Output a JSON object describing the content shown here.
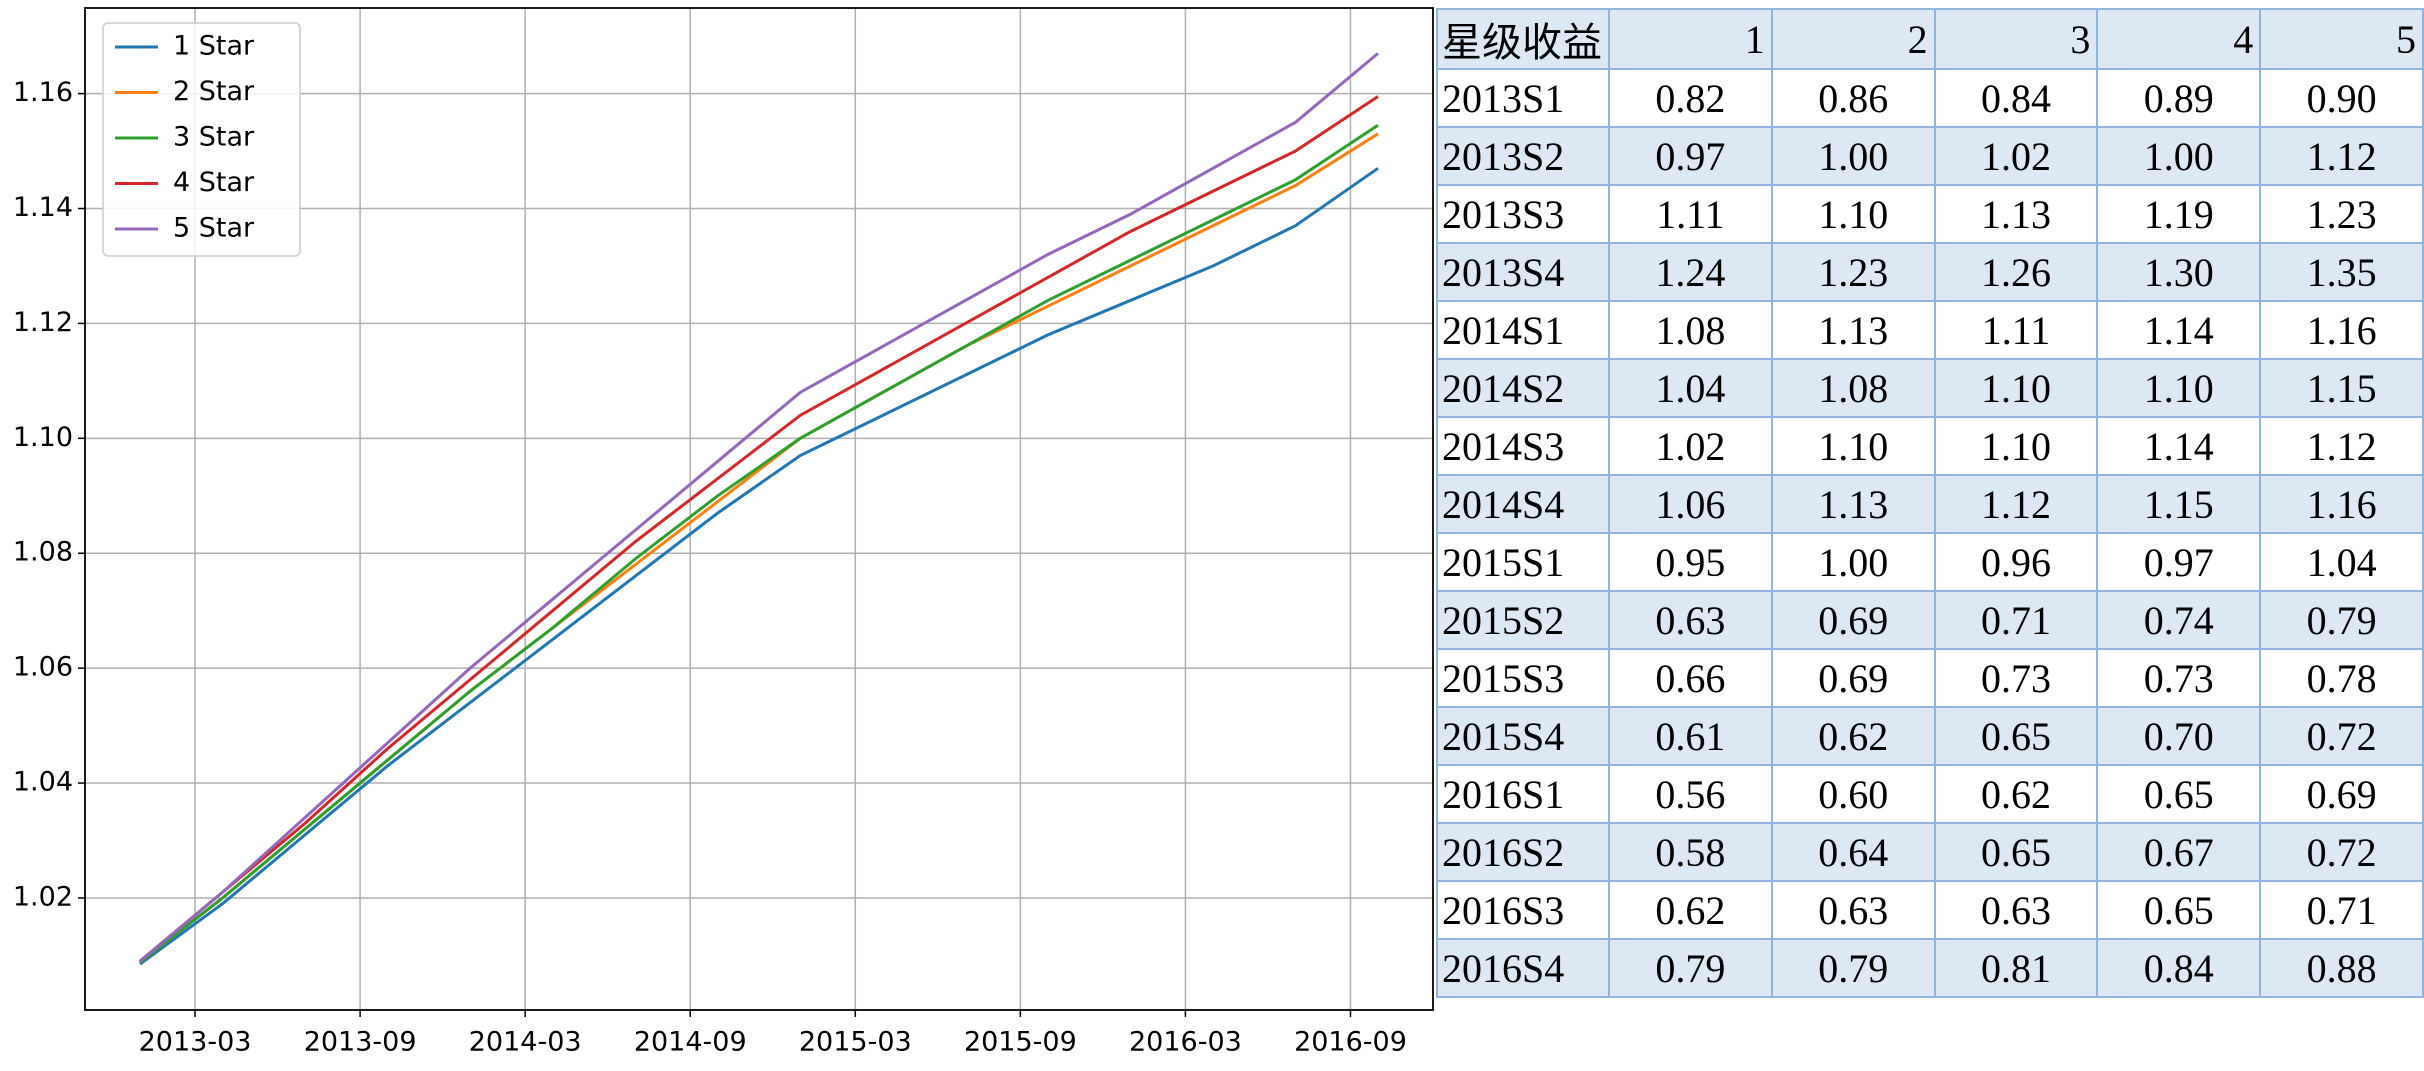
{
  "chart_data": {
    "type": "line",
    "x": [
      "2013-01",
      "2013-04",
      "2013-07",
      "2013-10",
      "2014-01",
      "2014-04",
      "2014-07",
      "2014-10",
      "2015-01",
      "2015-04",
      "2015-07",
      "2015-10",
      "2016-01",
      "2016-04",
      "2016-07",
      "2016-10"
    ],
    "series": [
      {
        "name": "1 Star",
        "color": "#1f77b4",
        "values": [
          1.0085,
          1.019,
          1.031,
          1.043,
          1.054,
          1.065,
          1.076,
          1.087,
          1.097,
          1.104,
          1.111,
          1.118,
          1.124,
          1.13,
          1.137,
          1.147
        ]
      },
      {
        "name": "2 Star",
        "color": "#ff7f0e",
        "values": [
          1.0088,
          1.02,
          1.032,
          1.044,
          1.056,
          1.067,
          1.078,
          1.089,
          1.1,
          1.108,
          1.116,
          1.123,
          1.13,
          1.137,
          1.144,
          1.153
        ]
      },
      {
        "name": "3 Star",
        "color": "#2ca02c",
        "values": [
          1.0088,
          1.02,
          1.032,
          1.044,
          1.056,
          1.067,
          1.079,
          1.09,
          1.1,
          1.108,
          1.116,
          1.124,
          1.131,
          1.138,
          1.145,
          1.1545
        ]
      },
      {
        "name": "4 Star",
        "color": "#d62728",
        "values": [
          1.009,
          1.021,
          1.033,
          1.046,
          1.058,
          1.07,
          1.082,
          1.093,
          1.104,
          1.112,
          1.12,
          1.128,
          1.136,
          1.143,
          1.15,
          1.1595
        ]
      },
      {
        "name": "5 Star",
        "color": "#9467bd",
        "values": [
          1.009,
          1.021,
          1.034,
          1.047,
          1.06,
          1.072,
          1.084,
          1.096,
          1.108,
          1.116,
          1.124,
          1.132,
          1.139,
          1.147,
          1.155,
          1.167
        ]
      }
    ],
    "xlim": [
      "2012-11",
      "2016-12"
    ],
    "xticks": [
      "2013-03",
      "2013-09",
      "2014-03",
      "2014-09",
      "2015-03",
      "2015-09",
      "2016-03",
      "2016-09"
    ],
    "ylim": [
      1.0005,
      1.1749
    ],
    "yticks": [
      1.02,
      1.04,
      1.06,
      1.08,
      {
        "value": 1.1,
        "label": "1.10"
      },
      1.12,
      1.14,
      1.16
    ],
    "grid": true,
    "legend": "upper left"
  },
  "table": {
    "header": [
      "星级收益",
      "1",
      "2",
      "3",
      "4",
      "5"
    ],
    "rows": [
      [
        "2013S1",
        "0.82",
        "0.86",
        "0.84",
        "0.89",
        "0.90"
      ],
      [
        "2013S2",
        "0.97",
        "1.00",
        "1.02",
        "1.00",
        "1.12"
      ],
      [
        "2013S3",
        "1.11",
        "1.10",
        "1.13",
        "1.19",
        "1.23"
      ],
      [
        "2013S4",
        "1.24",
        "1.23",
        "1.26",
        "1.30",
        "1.35"
      ],
      [
        "2014S1",
        "1.08",
        "1.13",
        "1.11",
        "1.14",
        "1.16"
      ],
      [
        "2014S2",
        "1.04",
        "1.08",
        "1.10",
        "1.10",
        "1.15"
      ],
      [
        "2014S3",
        "1.02",
        "1.10",
        "1.10",
        "1.14",
        "1.12"
      ],
      [
        "2014S4",
        "1.06",
        "1.13",
        "1.12",
        "1.15",
        "1.16"
      ],
      [
        "2015S1",
        "0.95",
        "1.00",
        "0.96",
        "0.97",
        "1.04"
      ],
      [
        "2015S2",
        "0.63",
        "0.69",
        "0.71",
        "0.74",
        "0.79"
      ],
      [
        "2015S3",
        "0.66",
        "0.69",
        "0.73",
        "0.73",
        "0.78"
      ],
      [
        "2015S4",
        "0.61",
        "0.62",
        "0.65",
        "0.70",
        "0.72"
      ],
      [
        "2016S1",
        "0.56",
        "0.60",
        "0.62",
        "0.65",
        "0.69"
      ],
      [
        "2016S2",
        "0.58",
        "0.64",
        "0.65",
        "0.67",
        "0.72"
      ],
      [
        "2016S3",
        "0.62",
        "0.63",
        "0.63",
        "0.65",
        "0.71"
      ],
      [
        "2016S4",
        "0.79",
        "0.79",
        "0.81",
        "0.84",
        "0.88"
      ]
    ]
  }
}
